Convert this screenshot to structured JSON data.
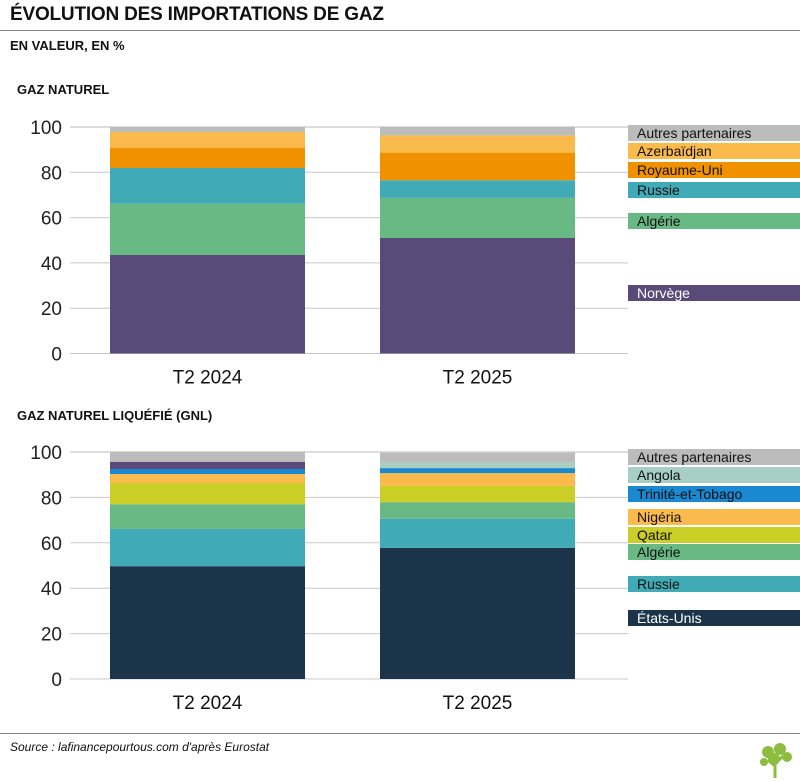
{
  "header": {
    "title": "ÉVOLUTION DES IMPORTATIONS DE GAZ",
    "subtitle": "EN VALEUR, EN %"
  },
  "footer": {
    "source": "Source : lafinancepourtous.com d'après Eurostat"
  },
  "chart_data": [
    {
      "type": "bar",
      "stacked": true,
      "title": "GAZ NATUREL",
      "categories": [
        "T2 2024",
        "T2 2025"
      ],
      "ylim": [
        0,
        100
      ],
      "yticks": [
        "0",
        "20",
        "40",
        "60",
        "80",
        "100"
      ],
      "grid": true,
      "legend": "right",
      "series": [
        {
          "name": "Norvège",
          "color": "#594a7a",
          "values": [
            43.5,
            51.0
          ]
        },
        {
          "name": "Algérie",
          "color": "#69b985",
          "values": [
            22.6,
            17.7
          ]
        },
        {
          "name": "Russie",
          "color": "#40abb6",
          "values": [
            15.8,
            7.8
          ]
        },
        {
          "name": "Royaume-Uni",
          "color": "#f09200",
          "values": [
            9.0,
            12.2
          ]
        },
        {
          "name": "Azerbaïdjan",
          "color": "#fbba4c",
          "values": [
            6.9,
            7.6
          ]
        },
        {
          "name": "Autres partenaires",
          "color": "#bcbcbc",
          "values": [
            2.2,
            3.7
          ]
        }
      ]
    },
    {
      "type": "bar",
      "stacked": true,
      "title": "GAZ NATUREL LIQUÉFIÉ (GNL)",
      "categories": [
        "T2 2024",
        "T2 2025"
      ],
      "ylim": [
        0,
        100
      ],
      "yticks": [
        "0",
        "20",
        "40",
        "60",
        "80",
        "100"
      ],
      "grid": true,
      "legend": "right",
      "series": [
        {
          "name": "États-Unis",
          "color": "#1b344a",
          "values": [
            49.7,
            57.8
          ]
        },
        {
          "name": "Russie",
          "color": "#40abb6",
          "values": [
            16.4,
            12.8
          ]
        },
        {
          "name": "Algérie",
          "color": "#69b985",
          "values": [
            10.9,
            7.3
          ]
        },
        {
          "name": "Qatar",
          "color": "#cace26",
          "values": [
            9.3,
            7.2
          ]
        },
        {
          "name": "Nigéria",
          "color": "#fbba4c",
          "values": [
            4.0,
            5.6
          ]
        },
        {
          "name": "Trinité-et-Tobago",
          "color": "#1b88d2",
          "values": [
            2.2,
            2.2
          ]
        },
        {
          "name": "Angola",
          "color": "#a7cfc4",
          "values": [
            0,
            2.4
          ]
        },
        {
          "name": "",
          "color": "#594a7a",
          "values": [
            3.2,
            0
          ]
        },
        {
          "name": "Autres partenaires",
          "color": "#bcbcbc",
          "values": [
            4.3,
            4.5
          ]
        }
      ]
    }
  ]
}
